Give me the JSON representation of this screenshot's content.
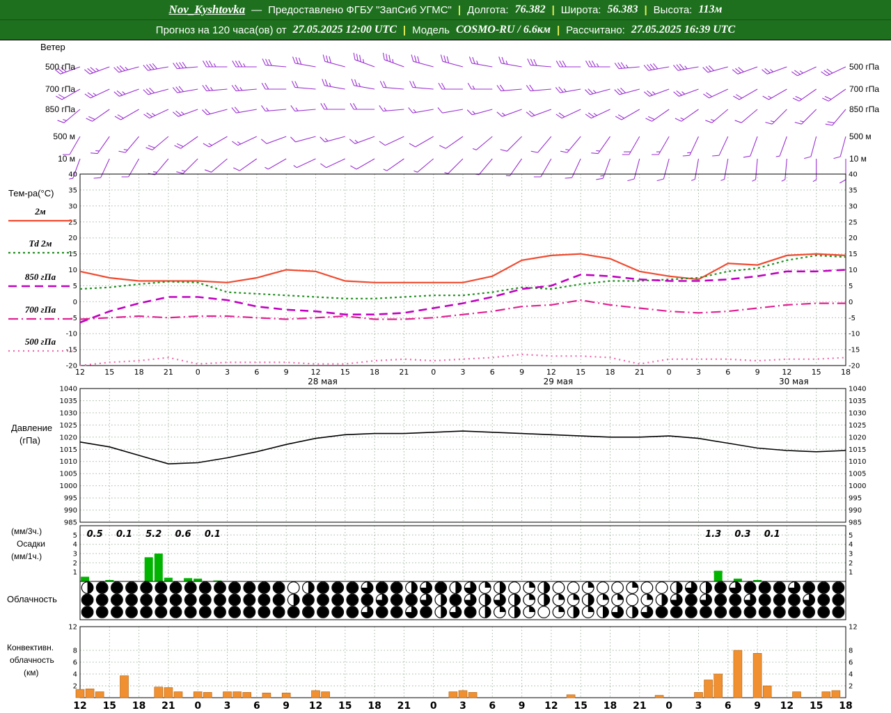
{
  "header": {
    "station": "Nov_Kyshtovka",
    "dash": "—",
    "provider": "Предоставлено ФГБУ \"ЗапСиб УГМС\"",
    "separator": "|",
    "lon_label": "Долгота:",
    "lon": "76.382",
    "lat_label": "Широта:",
    "lat": "56.383",
    "alt_label": "Высота:",
    "alt": "113м",
    "forecast_label": "Прогноз на 120 часа(ов) от",
    "run_time": "27.05.2025 12:00 UTC",
    "model_label": "Модель",
    "model": "COSMO-RU / 6.6км",
    "calc_label": "Рассчитано:",
    "calc_time": "27.05.2025 16:39 UTC"
  },
  "axis": {
    "hours": [
      "12",
      "15",
      "18",
      "21",
      "0",
      "3",
      "6",
      "9",
      "12",
      "15",
      "18",
      "21",
      "0",
      "3",
      "6",
      "9",
      "12",
      "15",
      "18",
      "21",
      "0",
      "3",
      "6",
      "9",
      "12",
      "15",
      "18"
    ],
    "step_hours": 3,
    "dates": [
      {
        "label": "28 мая",
        "index": 8
      },
      {
        "label": "29 мая",
        "index": 16
      },
      {
        "label": "30 мая",
        "index": 24
      }
    ]
  },
  "chart_data": [
    {
      "id": "wind",
      "type": "wind-barbs",
      "title": "Ветер",
      "color": "#9b2fd2",
      "levels": [
        {
          "label": "500 гПа",
          "dirs": [
            250,
            250,
            255,
            260,
            265,
            270,
            270,
            275,
            280,
            285,
            290,
            290,
            285,
            285,
            280,
            280,
            275,
            270,
            270,
            265,
            260,
            260,
            255,
            250,
            250,
            245,
            245
          ],
          "speeds": [
            30,
            35,
            35,
            40,
            40,
            35,
            35,
            30,
            30,
            30,
            35,
            35,
            30,
            30,
            25,
            25,
            30,
            30,
            35,
            35,
            40,
            35,
            30,
            30,
            25,
            25,
            30
          ]
        },
        {
          "label": "700 гПа",
          "dirs": [
            240,
            245,
            250,
            255,
            260,
            265,
            265,
            270,
            275,
            280,
            280,
            275,
            275,
            270,
            270,
            265,
            265,
            260,
            255,
            255,
            250,
            250,
            245,
            240,
            240,
            235,
            235
          ],
          "speeds": [
            20,
            25,
            25,
            30,
            30,
            25,
            25,
            20,
            20,
            25,
            25,
            20,
            20,
            20,
            15,
            20,
            20,
            25,
            25,
            30,
            25,
            25,
            20,
            20,
            15,
            20,
            20
          ]
        },
        {
          "label": "850 гПа",
          "dirs": [
            230,
            235,
            240,
            245,
            250,
            255,
            260,
            265,
            265,
            270,
            270,
            265,
            260,
            260,
            255,
            250,
            250,
            245,
            245,
            240,
            235,
            235,
            230,
            230,
            225,
            225,
            220
          ],
          "speeds": [
            15,
            20,
            20,
            25,
            25,
            20,
            20,
            15,
            15,
            20,
            20,
            15,
            15,
            10,
            15,
            15,
            20,
            20,
            25,
            20,
            20,
            15,
            15,
            10,
            15,
            15,
            20
          ]
        },
        {
          "label": "500 м",
          "dirs": [
            210,
            215,
            220,
            230,
            235,
            240,
            245,
            250,
            255,
            255,
            250,
            245,
            240,
            235,
            230,
            225,
            220,
            220,
            215,
            210,
            210,
            205,
            205,
            200,
            200,
            195,
            195
          ],
          "speeds": [
            10,
            15,
            15,
            20,
            20,
            15,
            15,
            10,
            10,
            15,
            15,
            10,
            10,
            10,
            5,
            10,
            10,
            15,
            15,
            20,
            15,
            15,
            10,
            10,
            5,
            10,
            10
          ]
        },
        {
          "label": "10 м",
          "dirs": [
            200,
            205,
            210,
            220,
            225,
            230,
            235,
            240,
            245,
            245,
            240,
            235,
            230,
            225,
            220,
            215,
            210,
            205,
            200,
            195,
            195,
            190,
            190,
            185,
            185,
            180,
            180
          ],
          "speeds": [
            5,
            10,
            10,
            15,
            15,
            10,
            10,
            5,
            5,
            10,
            10,
            5,
            5,
            5,
            5,
            5,
            10,
            10,
            15,
            10,
            10,
            5,
            5,
            5,
            5,
            5,
            10
          ]
        }
      ]
    },
    {
      "id": "temperature",
      "type": "line",
      "title": "Тем-ра(°C)",
      "ylim": [
        -20,
        40
      ],
      "ytick": 5,
      "series": [
        {
          "id": "t2m",
          "name": "2м",
          "color": "#f04a30",
          "style": "solid",
          "width": 2.2,
          "values": [
            9.5,
            7.5,
            6.5,
            6.5,
            6.5,
            6,
            7.5,
            10,
            9.5,
            6.5,
            6,
            6,
            6,
            6,
            8,
            13,
            14.5,
            15,
            13.5,
            9.5,
            8,
            7,
            12,
            11.5,
            14.5,
            15,
            14.5
          ]
        },
        {
          "id": "td2m",
          "name": "Td 2м",
          "color": "#1f8f1f",
          "style": "dotted",
          "width": 2.2,
          "values": [
            4,
            4.5,
            5.5,
            6.3,
            6,
            3,
            2.5,
            2,
            1.5,
            1,
            1,
            1.5,
            2,
            2,
            3,
            4.5,
            4,
            5.5,
            6.5,
            6.5,
            7,
            7.5,
            9.5,
            10.5,
            13,
            14.5,
            14
          ]
        },
        {
          "id": "t850",
          "name": "850 гПа",
          "color": "#c000c0",
          "style": "dashed",
          "width": 2.6,
          "values": [
            -6.5,
            -3,
            -0.5,
            1.5,
            1.5,
            0.5,
            -1.5,
            -2.5,
            -3,
            -4,
            -4,
            -3.5,
            -2,
            -0.5,
            1.5,
            4,
            5,
            8.5,
            8,
            7,
            6.5,
            6.5,
            7,
            8,
            9.5,
            9.5,
            10
          ]
        },
        {
          "id": "t700",
          "name": "700 гПа",
          "color": "#e02090",
          "style": "dashdot",
          "width": 2.2,
          "values": [
            -5.5,
            -5,
            -4.5,
            -5,
            -4.5,
            -4.5,
            -5,
            -5.5,
            -5,
            -4.5,
            -5.5,
            -5.5,
            -5,
            -4,
            -3,
            -1.5,
            -1,
            0.5,
            -1,
            -2,
            -3,
            -3.5,
            -3,
            -2,
            -1,
            -0.5,
            -0.5
          ]
        },
        {
          "id": "t500",
          "name": "500 гПа",
          "color": "#ee66aa",
          "style": "sparse_dotted",
          "width": 2.2,
          "values": [
            -20,
            -19,
            -18.5,
            -17.5,
            -19.5,
            -19,
            -19,
            -19,
            -19.5,
            -19.5,
            -18.5,
            -18,
            -18.5,
            -18,
            -17.5,
            -16.5,
            -17,
            -17,
            -17.5,
            -19.5,
            -18,
            -18,
            -18,
            -18.5,
            -18,
            -18,
            -17.5
          ]
        }
      ]
    },
    {
      "id": "pressure",
      "type": "line",
      "title": "Давление",
      "unit": "(гПа)",
      "ylim": [
        985,
        1040
      ],
      "ytick": 5,
      "color": "#000000",
      "values": [
        1018,
        1016,
        1012.5,
        1009,
        1009.5,
        1011.5,
        1014,
        1017,
        1019.5,
        1021,
        1021.5,
        1021.5,
        1022,
        1022.5,
        1022,
        1021.5,
        1021,
        1020.5,
        1020,
        1020,
        1020.5,
        1019.5,
        1017.5,
        1015.5,
        1014.5,
        1014,
        1014.5
      ]
    },
    {
      "id": "precipitation",
      "type": "bar",
      "labels": [
        "(мм/3ч.)",
        "Осадки",
        "(мм/1ч.)"
      ],
      "ylim": [
        0,
        6
      ],
      "bar_color": "#00b400",
      "sums": [
        {
          "label": "0.5",
          "h": 1.5
        },
        {
          "label": "0.1",
          "h": 4.5
        },
        {
          "label": "5.2",
          "h": 7.5
        },
        {
          "label": "0.6",
          "h": 10.5
        },
        {
          "label": "0.1",
          "h": 13.5
        },
        {
          "label": "1.3",
          "h": 64.5
        },
        {
          "label": "0.3",
          "h": 67.5
        },
        {
          "label": "0.1",
          "h": 70.5
        }
      ],
      "bars": [
        {
          "h": 0.5,
          "v": 0.5
        },
        {
          "h": 3,
          "v": 0.15
        },
        {
          "h": 7,
          "v": 2.6
        },
        {
          "h": 8,
          "v": 3
        },
        {
          "h": 9,
          "v": 0.4
        },
        {
          "h": 11,
          "v": 0.35
        },
        {
          "h": 12,
          "v": 0.3
        },
        {
          "h": 14,
          "v": 0.1
        },
        {
          "h": 65,
          "v": 1.15
        },
        {
          "h": 67,
          "v": 0.3
        },
        {
          "h": 69,
          "v": 0.15
        }
      ]
    },
    {
      "id": "cloudiness",
      "type": "symbols",
      "title": "Облачность",
      "rows": [
        [
          4,
          8,
          8,
          8,
          8,
          8,
          8,
          8,
          8,
          8,
          8,
          8,
          8,
          8,
          0,
          4,
          8,
          8,
          8,
          6,
          8,
          8,
          4,
          6,
          8,
          4,
          6,
          2,
          4,
          0,
          2,
          4,
          0,
          0,
          2,
          0,
          0,
          2,
          0,
          0,
          4,
          6,
          4,
          8,
          6,
          8,
          8,
          8,
          6,
          8,
          8,
          8
        ],
        [
          8,
          8,
          8,
          8,
          8,
          8,
          8,
          8,
          8,
          8,
          8,
          8,
          8,
          8,
          4,
          8,
          8,
          8,
          8,
          8,
          6,
          8,
          8,
          6,
          4,
          8,
          6,
          4,
          6,
          4,
          2,
          4,
          2,
          2,
          4,
          2,
          2,
          0,
          2,
          4,
          6,
          8,
          6,
          8,
          8,
          6,
          8,
          8,
          8,
          6,
          8,
          8
        ],
        [
          8,
          8,
          8,
          8,
          8,
          8,
          8,
          8,
          8,
          8,
          8,
          8,
          8,
          8,
          8,
          8,
          8,
          8,
          8,
          6,
          8,
          8,
          6,
          8,
          4,
          6,
          8,
          4,
          2,
          4,
          2,
          0,
          2,
          4,
          2,
          4,
          6,
          4,
          6,
          8,
          8,
          8,
          8,
          8,
          8,
          8,
          8,
          8,
          8,
          8,
          8,
          8
        ]
      ]
    },
    {
      "id": "convective",
      "type": "bar",
      "labels": [
        "Конвективн.",
        "облачность",
        "(км)"
      ],
      "ylim": [
        0,
        12
      ],
      "yticks": [
        2,
        4,
        6,
        8,
        12
      ],
      "bar_color": "#f09030",
      "bars": [
        {
          "h": 0,
          "v": 1.4
        },
        {
          "h": 1,
          "v": 1.5
        },
        {
          "h": 2,
          "v": 1
        },
        {
          "h": 4.5,
          "v": 3.7
        },
        {
          "h": 8,
          "v": 1.8
        },
        {
          "h": 9,
          "v": 1.7
        },
        {
          "h": 10,
          "v": 1
        },
        {
          "h": 12,
          "v": 1
        },
        {
          "h": 13,
          "v": 0.9
        },
        {
          "h": 15,
          "v": 1
        },
        {
          "h": 16,
          "v": 1
        },
        {
          "h": 17,
          "v": 0.9
        },
        {
          "h": 19,
          "v": 0.8
        },
        {
          "h": 21,
          "v": 0.8
        },
        {
          "h": 24,
          "v": 1.2
        },
        {
          "h": 25,
          "v": 1
        },
        {
          "h": 38,
          "v": 1
        },
        {
          "h": 39,
          "v": 1.2
        },
        {
          "h": 40,
          "v": 0.9
        },
        {
          "h": 50,
          "v": 0.5
        },
        {
          "h": 59,
          "v": 0.4
        },
        {
          "h": 63,
          "v": 0.9
        },
        {
          "h": 64,
          "v": 3
        },
        {
          "h": 65,
          "v": 4
        },
        {
          "h": 67,
          "v": 8
        },
        {
          "h": 69,
          "v": 7.5
        },
        {
          "h": 70,
          "v": 2
        },
        {
          "h": 73,
          "v": 1
        },
        {
          "h": 76,
          "v": 1
        },
        {
          "h": 77,
          "v": 1.2
        }
      ]
    }
  ]
}
